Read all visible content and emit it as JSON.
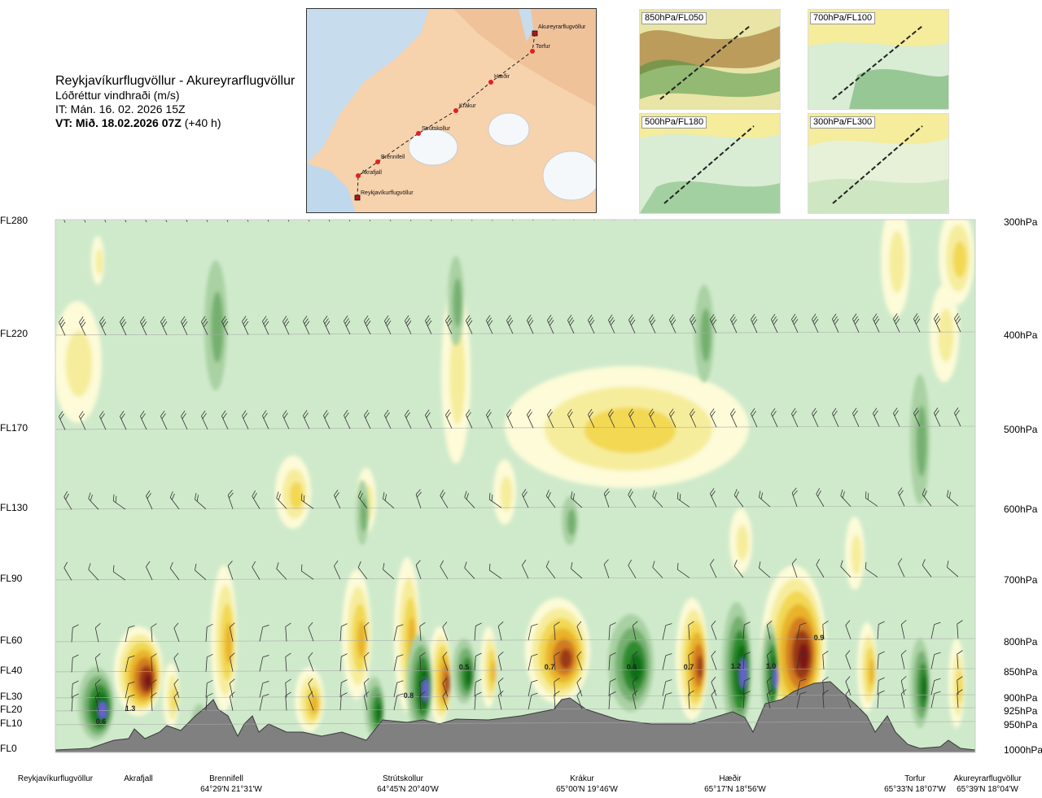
{
  "header": {
    "route": "Reykjavíkurflugvöllur - Akureyrarflugvöllur",
    "variable": "Lóðréttur vindhraði (m/s)",
    "issue_time": "IT: Mán. 16. 02. 2026 15Z",
    "valid_time_bold": "VT: Mið. 18.02.2026 07Z",
    "valid_lead": " (+40 h)"
  },
  "map": {
    "places": [
      "Akureyrarflugvöllur",
      "Torfur",
      "Hæðir",
      "Krákur",
      "Strútskollur",
      "Brennifell",
      "Akrafjall",
      "Reykjavíkurflugvöllur"
    ]
  },
  "insets": [
    "850hPa/FL050",
    "700hPa/FL100",
    "500hPa/FL180",
    "300hPa/FL300"
  ],
  "chart_data": {
    "type": "heatmap",
    "title": "Reykjavíkurflugvöllur - Akureyrarflugvöllur",
    "variable": "Lóðréttur vindhraði (m/s)",
    "left_axis_flight_levels": [
      "FL280",
      "FL220",
      "FL170",
      "FL130",
      "FL90",
      "FL60",
      "FL40",
      "FL30",
      "FL20",
      "FL10",
      "FL0"
    ],
    "right_axis_pressure_levels": [
      "300hPa",
      "400hPa",
      "500hPa",
      "600hPa",
      "700hPa",
      "800hPa",
      "850hPa",
      "900hPa",
      "925hPa",
      "950hPa",
      "1000hPa"
    ],
    "waypoints": [
      {
        "name": "Reykjavíkurflugvöllur",
        "coord": ""
      },
      {
        "name": "Akrafjall",
        "coord": ""
      },
      {
        "name": "Brennifell",
        "coord": "64°29'N 21°31'W"
      },
      {
        "name": "Strútskollur",
        "coord": "64°45'N 20°40'W"
      },
      {
        "name": "Krákur",
        "coord": "65°00'N 19°46'W"
      },
      {
        "name": "Hæðir",
        "coord": "65°17'N 18°56'W"
      },
      {
        "name": "Torfur",
        "coord": "65°33'N 18°07'W"
      },
      {
        "name": "Akureyrarflugvöllur",
        "coord": "65°39'N 18°04'W"
      }
    ],
    "contour_labels": [
      "0.6",
      "1.3",
      "0.8",
      "0.5",
      "0.7",
      "0.6",
      "0.7",
      "1.2",
      "1.0",
      "0.9"
    ],
    "colors": {
      "background": "#cfeacb",
      "updraft_levels": [
        "#fdfbd8",
        "#f6ed9c",
        "#f2d852",
        "#e9b32a",
        "#d27c21",
        "#9b3b12",
        "#7c1515"
      ],
      "downdraft_levels": [
        "#a9d1a3",
        "#74b070",
        "#2e8b2e",
        "#0a6e14",
        "#6a5fd6"
      ],
      "terrain": "#808080",
      "route": "#222222",
      "waypoint": "#e32020"
    }
  }
}
